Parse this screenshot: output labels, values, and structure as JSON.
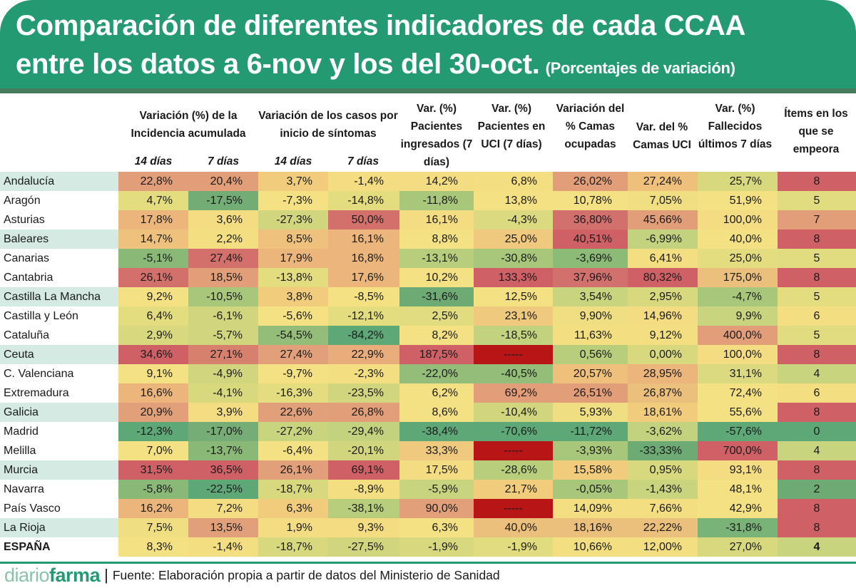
{
  "title": {
    "line1": "Comparación de diferentes indicadores de cada CCAA",
    "line2": "entre los datos a 6-nov y los del 30-oct.",
    "subtitle": "(Porcentajes de variación)"
  },
  "headers": {
    "incidence": "Variación (%)  de la Incidencia acumulada",
    "cases": "Variación de los casos por inicio de síntomas",
    "admitted": "Var. (%) Pacientes ingresados (7 días)",
    "icu": "Var. (%) Pacientes en UCI (7 días)",
    "beds": "Variación del % Camas ocupadas",
    "icu_beds": "Var. del % Camas UCI",
    "deaths": "Var. (%) Fallecidos últimos 7 días",
    "worse_items": "Ítems en los que se empeora",
    "sub_14": "14 días",
    "sub_7": "7 días"
  },
  "footer": {
    "logo_light": "diario",
    "logo_bold": "farma",
    "separator": "|",
    "source": "Fuente: Elaboración propia a partir de datos del Ministerio de Sanidad"
  },
  "chart_data": {
    "type": "table",
    "title": "Comparación de diferentes indicadores de cada CCAA entre los datos a 6-nov y los del 30-oct. (Porcentajes de variación)",
    "columns": [
      "Incidencia acumulada 14 días",
      "Incidencia acumulada 7 días",
      "Casos por inicio de síntomas 14 días",
      "Casos por inicio de síntomas 7 días",
      "Pacientes ingresados (7 días)",
      "Pacientes en UCI (7 días)",
      "Camas ocupadas",
      "Camas UCI",
      "Fallecidos últimos 7 días",
      "Ítems en los que se empeora"
    ],
    "color_scale": {
      "good": "#5ea878",
      "neutral": "#f4e184",
      "bad": "#cf6066",
      "missing": "#b71516"
    },
    "rows": [
      {
        "region": "Andalucía",
        "shaded": true,
        "values": [
          "22,8%",
          "20,4%",
          "3,7%",
          "-1,4%",
          "14,2%",
          "6,8%",
          "26,02%",
          "27,24%",
          "25,7%",
          "8"
        ],
        "colors": [
          "#e29d79",
          "#e29d79",
          "#f0cc7c",
          "#f3dc82",
          "#f3dc82",
          "#f3df82",
          "#e29d79",
          "#eec07c",
          "#d8d97e",
          "#cf6066"
        ]
      },
      {
        "region": "Aragón",
        "shaded": false,
        "values": [
          "4,7%",
          "-17,5%",
          "-7,3%",
          "-14,8%",
          "-11,8%",
          "13,8%",
          "10,78%",
          "7,05%",
          "51,9%",
          "5"
        ],
        "colors": [
          "#e4dd80",
          "#73ac74",
          "#f4e184",
          "#e4dd80",
          "#a9c77b",
          "#f4e184",
          "#f4e184",
          "#f0df82",
          "#f4e184",
          "#e0dc7f"
        ]
      },
      {
        "region": "Asturias",
        "shaded": false,
        "values": [
          "17,8%",
          "3,6%",
          "-27,3%",
          "50,0%",
          "16,1%",
          "-4,3%",
          "36,80%",
          "45,66%",
          "100,0%",
          "7"
        ],
        "colors": [
          "#ebb57c",
          "#f3dc82",
          "#d0d57e",
          "#d4706c",
          "#f3dc82",
          "#dcda80",
          "#d2706e",
          "#e29d79",
          "#f3dc82",
          "#e29d79"
        ]
      },
      {
        "region": "Baleares",
        "shaded": true,
        "values": [
          "14,7%",
          "2,2%",
          "8,5%",
          "16,1%",
          "8,8%",
          "25,0%",
          "40,51%",
          "-6,99%",
          "40,0%",
          "8"
        ],
        "colors": [
          "#eec27c",
          "#f3df82",
          "#eec27c",
          "#ebb57c",
          "#f4e184",
          "#efc97e",
          "#cf6066",
          "#c2d27e",
          "#f4e184",
          "#cf6066"
        ]
      },
      {
        "region": "Canarias",
        "shaded": false,
        "values": [
          "-5,1%",
          "27,4%",
          "17,9%",
          "16,8%",
          "-13,1%",
          "-30,8%",
          "-3,69%",
          "6,41%",
          "25,0%",
          "5"
        ],
        "colors": [
          "#89b877",
          "#d4706c",
          "#ebb57c",
          "#ebb57c",
          "#b9ce7d",
          "#a9c77b",
          "#8cbb78",
          "#f3df82",
          "#e4dd80",
          "#e0dc7f"
        ]
      },
      {
        "region": "Cantabria",
        "shaded": false,
        "values": [
          "26,1%",
          "18,5%",
          "-13,8%",
          "17,6%",
          "10,2%",
          "133,3%",
          "37,96%",
          "80,32%",
          "175,0%",
          "8"
        ],
        "colors": [
          "#d4706c",
          "#e29d79",
          "#e4dd80",
          "#ebb57c",
          "#f4e184",
          "#cf6066",
          "#d2706e",
          "#cf6066",
          "#ebbf7c",
          "#cf6066"
        ]
      },
      {
        "region": "Castilla La Mancha",
        "shaded": true,
        "values": [
          "9,2%",
          "-10,5%",
          "3,8%",
          "-8,5%",
          "-31,6%",
          "12,5%",
          "3,54%",
          "2,95%",
          "-4,7%",
          "5"
        ],
        "colors": [
          "#f4e184",
          "#a9c77b",
          "#f0cc7c",
          "#f4e184",
          "#6daa74",
          "#f4e184",
          "#c8d47e",
          "#d8d97e",
          "#a9c77b",
          "#e4dd80"
        ]
      },
      {
        "region": "Castilla y León",
        "shaded": false,
        "values": [
          "6,4%",
          "-6,1%",
          "-5,6%",
          "-12,1%",
          "2,5%",
          "23,1%",
          "9,90%",
          "14,96%",
          "9,9%",
          "6"
        ],
        "colors": [
          "#e4dd80",
          "#d0d57e",
          "#f4e184",
          "#e4dd80",
          "#e0dc7f",
          "#efc97e",
          "#f0df82",
          "#f3dc82",
          "#c8d47e",
          "#f3df82"
        ]
      },
      {
        "region": "Cataluña",
        "shaded": false,
        "values": [
          "2,9%",
          "-5,7%",
          "-54,5%",
          "-84,2%",
          "8,2%",
          "-18,5%",
          "11,63%",
          "9,12%",
          "400,0%",
          "5"
        ],
        "colors": [
          "#d8d97e",
          "#d0d57e",
          "#93bd78",
          "#5ea878",
          "#f4e184",
          "#c2d27e",
          "#f3df82",
          "#f3df82",
          "#e29d79",
          "#e0dc7f"
        ]
      },
      {
        "region": "Ceuta",
        "shaded": true,
        "values": [
          "34,6%",
          "27,1%",
          "27,4%",
          "22,9%",
          "187,5%",
          "-----",
          "0,56%",
          "0,00%",
          "100,0%",
          "8"
        ],
        "colors": [
          "#cf6066",
          "#d8806e",
          "#e2a07a",
          "#e8ad7b",
          "#cf6066",
          "#b71516",
          "#b9ce7d",
          "#d8d97e",
          "#f3dc82",
          "#cf6066"
        ]
      },
      {
        "region": "C. Valenciana",
        "shaded": false,
        "values": [
          "9,1%",
          "-4,9%",
          "-9,7%",
          "-2,3%",
          "-22,0%",
          "-40,5%",
          "20,57%",
          "28,95%",
          "31,1%",
          "4"
        ],
        "colors": [
          "#f4e184",
          "#d0d57e",
          "#f4e184",
          "#f3df82",
          "#93bd78",
          "#93bd78",
          "#eec07c",
          "#ebb57c",
          "#dcda80",
          "#c8d47e"
        ]
      },
      {
        "region": "Extremadura",
        "shaded": false,
        "values": [
          "16,6%",
          "-4,1%",
          "-16,3%",
          "-23,5%",
          "6,2%",
          "69,2%",
          "26,51%",
          "26,87%",
          "72,4%",
          "6"
        ],
        "colors": [
          "#ebb57c",
          "#d8d97e",
          "#e4dd80",
          "#d0d57e",
          "#f4e184",
          "#e29d79",
          "#e29d79",
          "#ebbf7c",
          "#f4e184",
          "#f3df82"
        ]
      },
      {
        "region": "Galicia",
        "shaded": true,
        "values": [
          "20,9%",
          "3,9%",
          "22,6%",
          "26,8%",
          "8,6%",
          "-10,4%",
          "5,93%",
          "18,61%",
          "55,6%",
          "8"
        ],
        "colors": [
          "#e2a07a",
          "#f3dc82",
          "#e2a07a",
          "#e29d79",
          "#f4e184",
          "#d0d57e",
          "#f0df82",
          "#f0cc7c",
          "#f4e184",
          "#cf6066"
        ]
      },
      {
        "region": "Madrid",
        "shaded": false,
        "values": [
          "-12,3%",
          "-17,0%",
          "-27,2%",
          "-29,4%",
          "-38,4%",
          "-70,6%",
          "-11,72%",
          "-3,62%",
          "-57,6%",
          "0"
        ],
        "colors": [
          "#5ea878",
          "#76ad76",
          "#c8d47e",
          "#c2d27e",
          "#5ea878",
          "#5ea878",
          "#5ea878",
          "#c2d27e",
          "#5ea878",
          "#5ea878"
        ]
      },
      {
        "region": "Melilla",
        "shaded": false,
        "values": [
          "7,0%",
          "-13,7%",
          "-6,4%",
          "-20,1%",
          "33,3%",
          "-----",
          "-3,93%",
          "-33,33%",
          "700,0%",
          "4"
        ],
        "colors": [
          "#f4e184",
          "#89b877",
          "#f4e184",
          "#d0d57e",
          "#efc97e",
          "#b71516",
          "#a9c77b",
          "#6daa74",
          "#cf6066",
          "#c8d47e"
        ]
      },
      {
        "region": "Murcia",
        "shaded": true,
        "values": [
          "31,5%",
          "36,5%",
          "26,1%",
          "69,1%",
          "17,5%",
          "-28,6%",
          "15,58%",
          "0,95%",
          "93,1%",
          "8"
        ],
        "colors": [
          "#cf6066",
          "#cf6066",
          "#e2a07a",
          "#cf6066",
          "#f3dc82",
          "#b9ce7d",
          "#f0cc7c",
          "#d8d97e",
          "#f3dc82",
          "#cf6066"
        ]
      },
      {
        "region": "Navarra",
        "shaded": false,
        "values": [
          "-5,8%",
          "-22,5%",
          "-18,7%",
          "-8,9%",
          "-5,9%",
          "21,7%",
          "-0,05%",
          "-1,43%",
          "48,1%",
          "2"
        ],
        "colors": [
          "#89b877",
          "#5ea878",
          "#d8d97e",
          "#f3df82",
          "#c8d47e",
          "#f0cc7c",
          "#a9c77b",
          "#c8d47e",
          "#f4e184",
          "#6daa74"
        ]
      },
      {
        "region": "País Vasco",
        "shaded": false,
        "values": [
          "16,2%",
          "7,2%",
          "6,3%",
          "-38,1%",
          "90,0%",
          "-----",
          "14,09%",
          "7,66%",
          "42,9%",
          "8"
        ],
        "colors": [
          "#ebb57c",
          "#f3dc82",
          "#f0cc7c",
          "#b9ce7d",
          "#e2a07a",
          "#b71516",
          "#f3df82",
          "#f3df82",
          "#f4e184",
          "#cf6066"
        ]
      },
      {
        "region": "La Rioja",
        "shaded": true,
        "values": [
          "7,5%",
          "13,5%",
          "1,9%",
          "9,3%",
          "6,3%",
          "40,0%",
          "18,16%",
          "22,22%",
          "-31,8%",
          "8"
        ],
        "colors": [
          "#f0df82",
          "#e2a07a",
          "#f3dc82",
          "#f3dc82",
          "#f4e184",
          "#ebbf7c",
          "#ebbf7c",
          "#ebbf7c",
          "#7ab377",
          "#cf6066"
        ]
      },
      {
        "region": "ESPAÑA",
        "shaded": false,
        "bold": true,
        "values": [
          "8,3%",
          "-1,4%",
          "-18,7%",
          "-27,5%",
          "-1,9%",
          "-1,9%",
          "10,66%",
          "12,00%",
          "27,0%",
          "4"
        ],
        "colors": [
          "#f4e184",
          "#f3df82",
          "#d8d97e",
          "#d0d57e",
          "#d8d97e",
          "#e0dc7f",
          "#f3df82",
          "#f3df82",
          "#d8d97e",
          "#c8d47e"
        ]
      }
    ]
  }
}
